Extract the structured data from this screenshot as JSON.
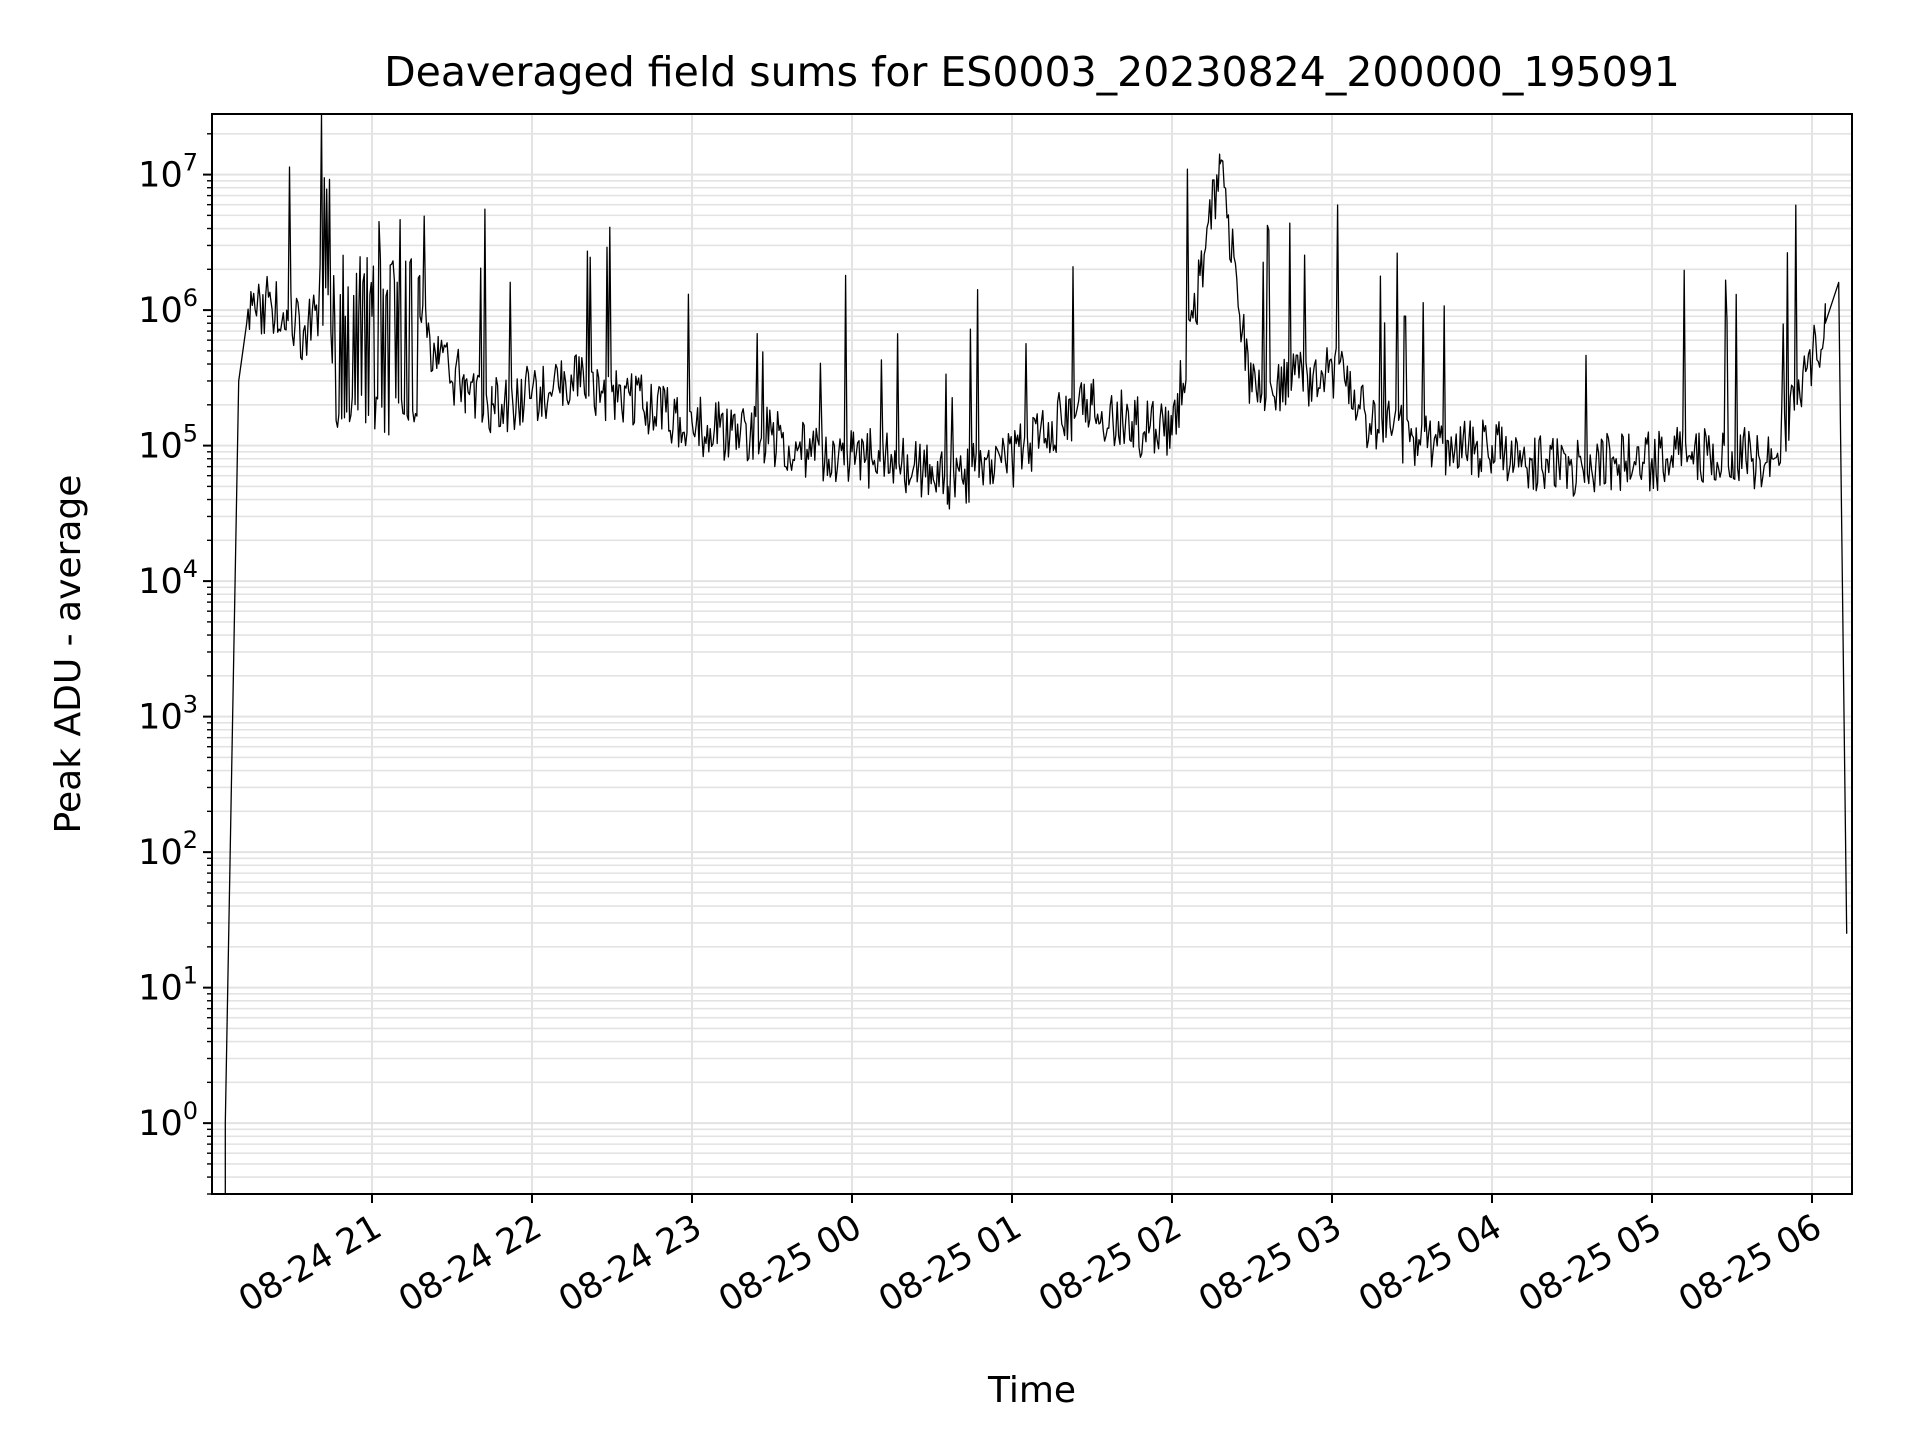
{
  "chart_data": {
    "type": "line",
    "title": "Deaveraged field sums for ES0003_20230824_200000_195091",
    "xlabel": "Time",
    "ylabel": "Peak ADU - average",
    "x_axis": {
      "kind": "time",
      "start": "2023-08-24 20:00",
      "end": "2023-08-25 06:15",
      "tick_labels": [
        "08-24 21",
        "08-24 22",
        "08-24 23",
        "08-25 00",
        "08-25 01",
        "08-25 02",
        "08-25 03",
        "08-25 04",
        "08-25 05",
        "08-25 06"
      ],
      "tick_times": [
        "2023-08-24 21:00",
        "2023-08-24 22:00",
        "2023-08-24 23:00",
        "2023-08-25 00:00",
        "2023-08-25 01:00",
        "2023-08-25 02:00",
        "2023-08-25 03:00",
        "2023-08-25 04:00",
        "2023-08-25 05:00",
        "2023-08-25 06:00"
      ]
    },
    "y_axis": {
      "scale": "log",
      "ylim": [
        0.3,
        28000000
      ],
      "tick_values": [
        1,
        10,
        100,
        1000,
        10000,
        100000,
        1000000,
        10000000
      ],
      "tick_base": "10",
      "tick_exponents": [
        "0",
        "1",
        "2",
        "3",
        "4",
        "5",
        "6",
        "7"
      ]
    },
    "grid": true,
    "line_color": "#000000",
    "grid_color": "#e3e3e3",
    "series": [
      {
        "x": [
          "2023-08-24 20:05",
          "2023-08-24 20:10",
          "2023-08-24 20:13",
          "2023-08-24 20:17",
          "2023-08-24 20:22",
          "2023-08-24 20:28",
          "2023-08-24 20:35",
          "2023-08-24 20:40",
          "2023-08-24 20:43",
          "2023-08-24 20:46",
          "2023-08-24 20:50",
          "2023-08-24 20:55",
          "2023-08-24 21:00",
          "2023-08-24 21:10",
          "2023-08-24 21:18",
          "2023-08-24 21:25",
          "2023-08-24 21:35",
          "2023-08-24 21:45",
          "2023-08-24 22:00",
          "2023-08-24 22:15",
          "2023-08-24 22:30",
          "2023-08-24 22:45",
          "2023-08-24 23:00",
          "2023-08-24 23:15",
          "2023-08-24 23:30",
          "2023-08-24 23:45",
          "2023-08-25 00:00",
          "2023-08-25 00:15",
          "2023-08-25 00:30",
          "2023-08-25 00:36",
          "2023-08-25 00:45",
          "2023-08-25 01:00",
          "2023-08-25 01:15",
          "2023-08-25 01:30",
          "2023-08-25 01:45",
          "2023-08-25 02:00",
          "2023-08-25 02:18",
          "2023-08-25 02:30",
          "2023-08-25 02:45",
          "2023-08-25 03:00",
          "2023-08-25 03:15",
          "2023-08-25 03:30",
          "2023-08-25 03:45",
          "2023-08-25 04:00",
          "2023-08-25 04:15",
          "2023-08-25 04:30",
          "2023-08-25 04:45",
          "2023-08-25 05:00",
          "2023-08-25 05:15",
          "2023-08-25 05:30",
          "2023-08-25 05:45",
          "2023-08-25 05:55",
          "2023-08-25 06:05",
          "2023-08-25 06:10",
          "2023-08-25 06:13"
        ],
        "y": [
          1,
          300000,
          800000,
          1100000,
          1200000,
          1000000,
          700000,
          1000000,
          7800000,
          900000,
          900000,
          900000,
          900000,
          800000,
          900000,
          400000,
          300000,
          200000,
          250000,
          300000,
          250000,
          200000,
          150000,
          130000,
          120000,
          100000,
          90000,
          80000,
          70000,
          50000,
          70000,
          85000,
          150000,
          200000,
          150000,
          120000,
          12000000,
          250000,
          300000,
          400000,
          150000,
          120000,
          100000,
          100000,
          80000,
          70000,
          80000,
          80000,
          90000,
          90000,
          80000,
          300000,
          800000,
          1600000,
          25
        ]
      }
    ]
  }
}
